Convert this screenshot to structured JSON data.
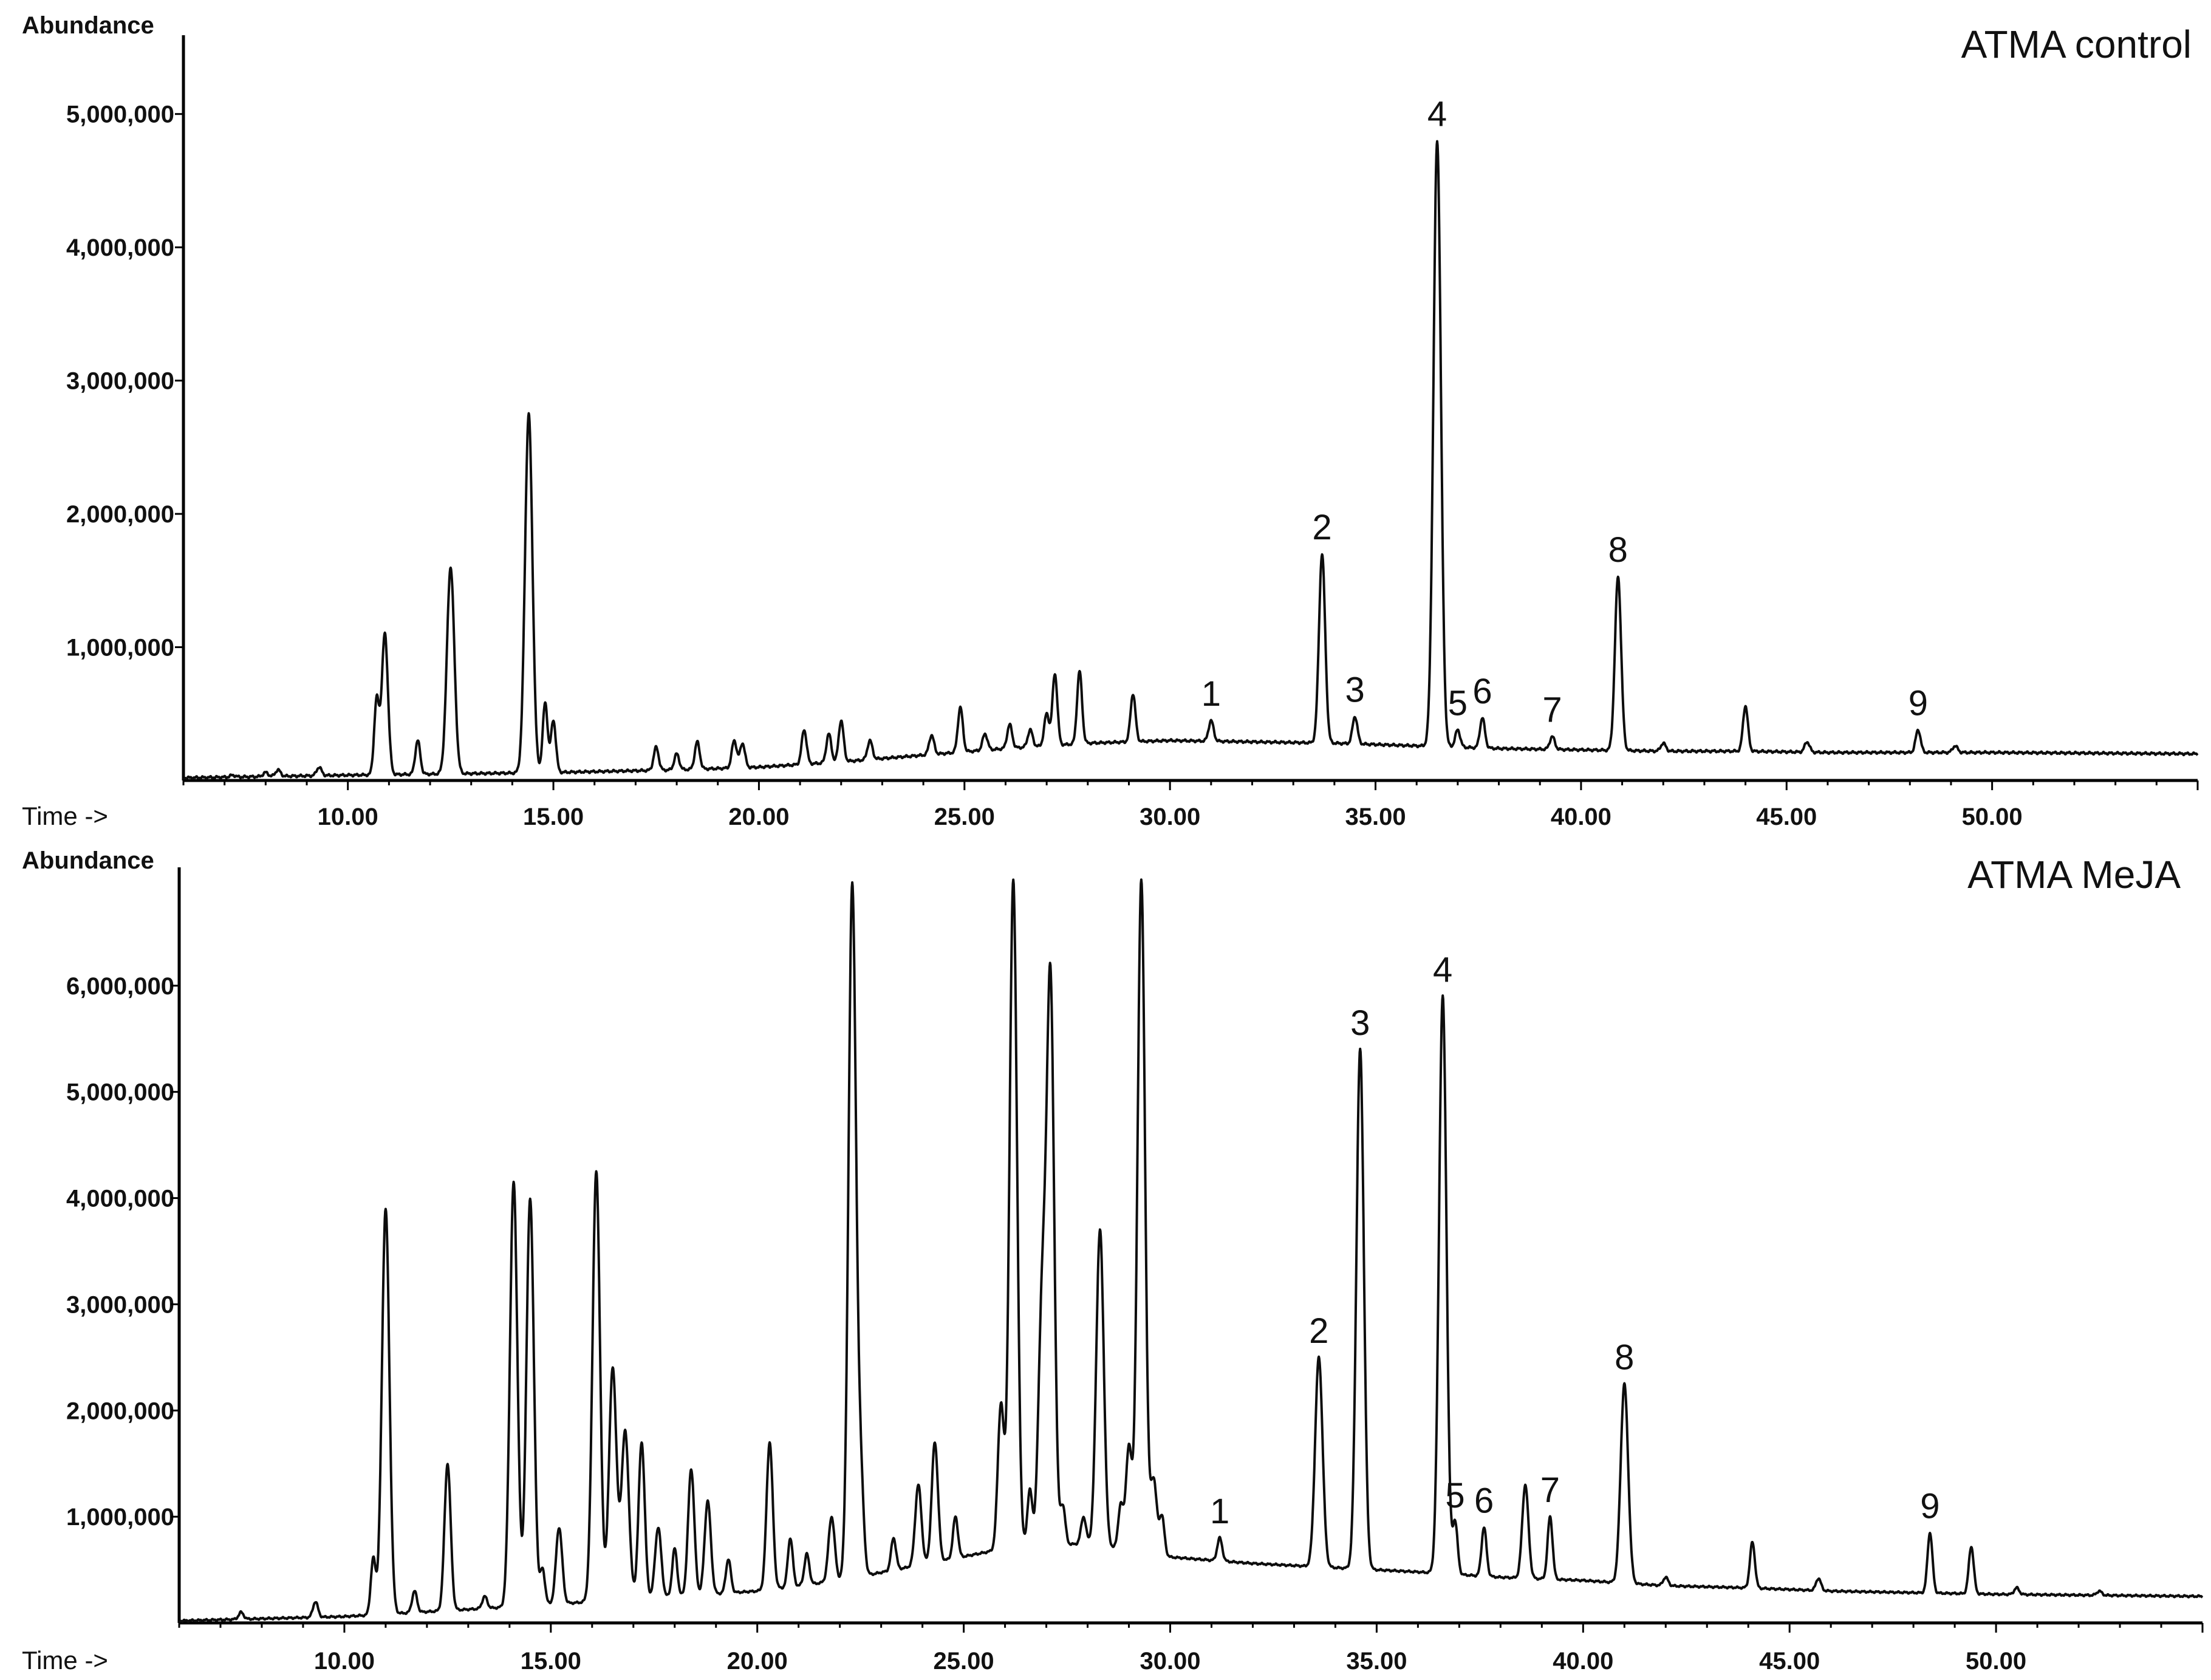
{
  "chart_data": [
    {
      "type": "line",
      "title": "ATMA control",
      "ylabel": "Abundance",
      "xlabel": "Time ->",
      "xlim": [
        6,
        55
      ],
      "ylim": [
        0,
        5500000
      ],
      "x_ticks": [
        "10.00",
        "15.00",
        "20.00",
        "25.00",
        "30.00",
        "35.00",
        "40.00",
        "45.00",
        "50.00"
      ],
      "y_ticks": [
        "1,000,000",
        "2,000,000",
        "3,000,000",
        "4,000,000",
        "5,000,000"
      ],
      "baseline": [
        [
          6,
          20000
        ],
        [
          10,
          40000
        ],
        [
          15,
          60000
        ],
        [
          18,
          80000
        ],
        [
          20,
          100000
        ],
        [
          22,
          140000
        ],
        [
          24,
          190000
        ],
        [
          26,
          240000
        ],
        [
          28,
          280000
        ],
        [
          30,
          300000
        ],
        [
          32,
          290000
        ],
        [
          34,
          280000
        ],
        [
          36,
          260000
        ],
        [
          38,
          240000
        ],
        [
          40,
          230000
        ],
        [
          42,
          220000
        ],
        [
          44,
          220000
        ],
        [
          46,
          210000
        ],
        [
          50,
          210000
        ],
        [
          55,
          200000
        ]
      ],
      "labeled_peaks": [
        {
          "label": "1",
          "x": 31.0,
          "y": 450000
        },
        {
          "label": "2",
          "x": 33.7,
          "y": 1700000
        },
        {
          "label": "3",
          "x": 34.5,
          "y": 480000
        },
        {
          "label": "4",
          "x": 36.5,
          "y": 4800000
        },
        {
          "label": "5",
          "x": 37.0,
          "y": 380000
        },
        {
          "label": "6",
          "x": 37.6,
          "y": 470000
        },
        {
          "label": "7",
          "x": 39.3,
          "y": 330000
        },
        {
          "label": "8",
          "x": 40.9,
          "y": 1530000
        },
        {
          "label": "9",
          "x": 48.2,
          "y": 380000
        }
      ],
      "other_peaks": [
        [
          7.2,
          40000
        ],
        [
          8.0,
          60000
        ],
        [
          8.3,
          80000
        ],
        [
          9.3,
          100000
        ],
        [
          10.7,
          600000
        ],
        [
          10.9,
          1100000
        ],
        [
          11.7,
          300000
        ],
        [
          12.5,
          1600000
        ],
        [
          14.4,
          2750000
        ],
        [
          14.8,
          580000
        ],
        [
          15.0,
          450000
        ],
        [
          17.5,
          250000
        ],
        [
          18.0,
          200000
        ],
        [
          18.5,
          290000
        ],
        [
          19.4,
          300000
        ],
        [
          19.6,
          280000
        ],
        [
          21.1,
          380000
        ],
        [
          21.7,
          350000
        ],
        [
          22.0,
          450000
        ],
        [
          22.7,
          300000
        ],
        [
          24.2,
          340000
        ],
        [
          24.9,
          550000
        ],
        [
          25.5,
          350000
        ],
        [
          26.1,
          420000
        ],
        [
          26.6,
          380000
        ],
        [
          27.0,
          500000
        ],
        [
          27.2,
          800000
        ],
        [
          27.8,
          820000
        ],
        [
          29.1,
          650000
        ],
        [
          42.0,
          280000
        ],
        [
          44.0,
          560000
        ],
        [
          45.5,
          290000
        ],
        [
          49.1,
          260000
        ]
      ]
    },
    {
      "type": "line",
      "title": "ATMA MeJA",
      "ylabel": "Abundance",
      "xlabel": "Time ->",
      "xlim": [
        6,
        55
      ],
      "ylim": [
        0,
        7000000
      ],
      "x_ticks": [
        "10.00",
        "15.00",
        "20.00",
        "25.00",
        "30.00",
        "35.00",
        "40.00",
        "45.00",
        "50.00"
      ],
      "y_ticks": [
        "1,000,000",
        "2,000,000",
        "3,000,000",
        "4,000,000",
        "5,000,000",
        "6,000,000"
      ],
      "baseline": [
        [
          6,
          20000
        ],
        [
          10,
          60000
        ],
        [
          14,
          150000
        ],
        [
          18,
          250000
        ],
        [
          20,
          300000
        ],
        [
          22,
          400000
        ],
        [
          24,
          550000
        ],
        [
          26,
          700000
        ],
        [
          28,
          750000
        ],
        [
          30,
          620000
        ],
        [
          32,
          560000
        ],
        [
          34,
          520000
        ],
        [
          36,
          480000
        ],
        [
          38,
          430000
        ],
        [
          40,
          400000
        ],
        [
          42,
          350000
        ],
        [
          44,
          330000
        ],
        [
          46,
          300000
        ],
        [
          50,
          270000
        ],
        [
          55,
          250000
        ]
      ],
      "labeled_peaks": [
        {
          "label": "1",
          "x": 31.2,
          "y": 800000
        },
        {
          "label": "2",
          "x": 33.6,
          "y": 2500000
        },
        {
          "label": "3",
          "x": 34.6,
          "y": 5400000
        },
        {
          "label": "4",
          "x": 36.6,
          "y": 5900000
        },
        {
          "label": "5",
          "x": 36.9,
          "y": 950000
        },
        {
          "label": "6",
          "x": 37.6,
          "y": 900000
        },
        {
          "label": "7",
          "x": 39.2,
          "y": 1000000
        },
        {
          "label": "8",
          "x": 41.0,
          "y": 2250000
        },
        {
          "label": "9",
          "x": 48.4,
          "y": 850000
        }
      ],
      "other_peaks": [
        [
          7.5,
          100000
        ],
        [
          9.3,
          200000
        ],
        [
          10.7,
          600000
        ],
        [
          11.0,
          3900000
        ],
        [
          11.7,
          300000
        ],
        [
          12.5,
          1500000
        ],
        [
          13.4,
          250000
        ],
        [
          14.1,
          4150000
        ],
        [
          14.5,
          4000000
        ],
        [
          14.8,
          500000
        ],
        [
          15.2,
          900000
        ],
        [
          16.1,
          4250000
        ],
        [
          16.5,
          2400000
        ],
        [
          16.8,
          1800000
        ],
        [
          17.2,
          1700000
        ],
        [
          17.6,
          900000
        ],
        [
          18.0,
          700000
        ],
        [
          18.4,
          1450000
        ],
        [
          18.8,
          1150000
        ],
        [
          19.3,
          600000
        ],
        [
          20.3,
          1700000
        ],
        [
          20.8,
          800000
        ],
        [
          21.2,
          650000
        ],
        [
          21.8,
          1000000
        ],
        [
          22.3,
          6950000
        ],
        [
          22.5,
          1350000
        ],
        [
          23.3,
          800000
        ],
        [
          23.9,
          1300000
        ],
        [
          24.3,
          1700000
        ],
        [
          24.8,
          1000000
        ],
        [
          25.9,
          2050000
        ],
        [
          26.2,
          7000000
        ],
        [
          26.6,
          1250000
        ],
        [
          26.9,
          3000000
        ],
        [
          27.1,
          6000000
        ],
        [
          27.4,
          1100000
        ],
        [
          27.9,
          1000000
        ],
        [
          28.3,
          3700000
        ],
        [
          28.8,
          1100000
        ],
        [
          29.0,
          1650000
        ],
        [
          29.3,
          7000000
        ],
        [
          29.6,
          1350000
        ],
        [
          29.8,
          1000000
        ],
        [
          38.6,
          1300000
        ],
        [
          42.0,
          430000
        ],
        [
          44.1,
          760000
        ],
        [
          45.7,
          420000
        ],
        [
          49.4,
          720000
        ],
        [
          50.5,
          330000
        ],
        [
          52.5,
          300000
        ]
      ]
    }
  ]
}
